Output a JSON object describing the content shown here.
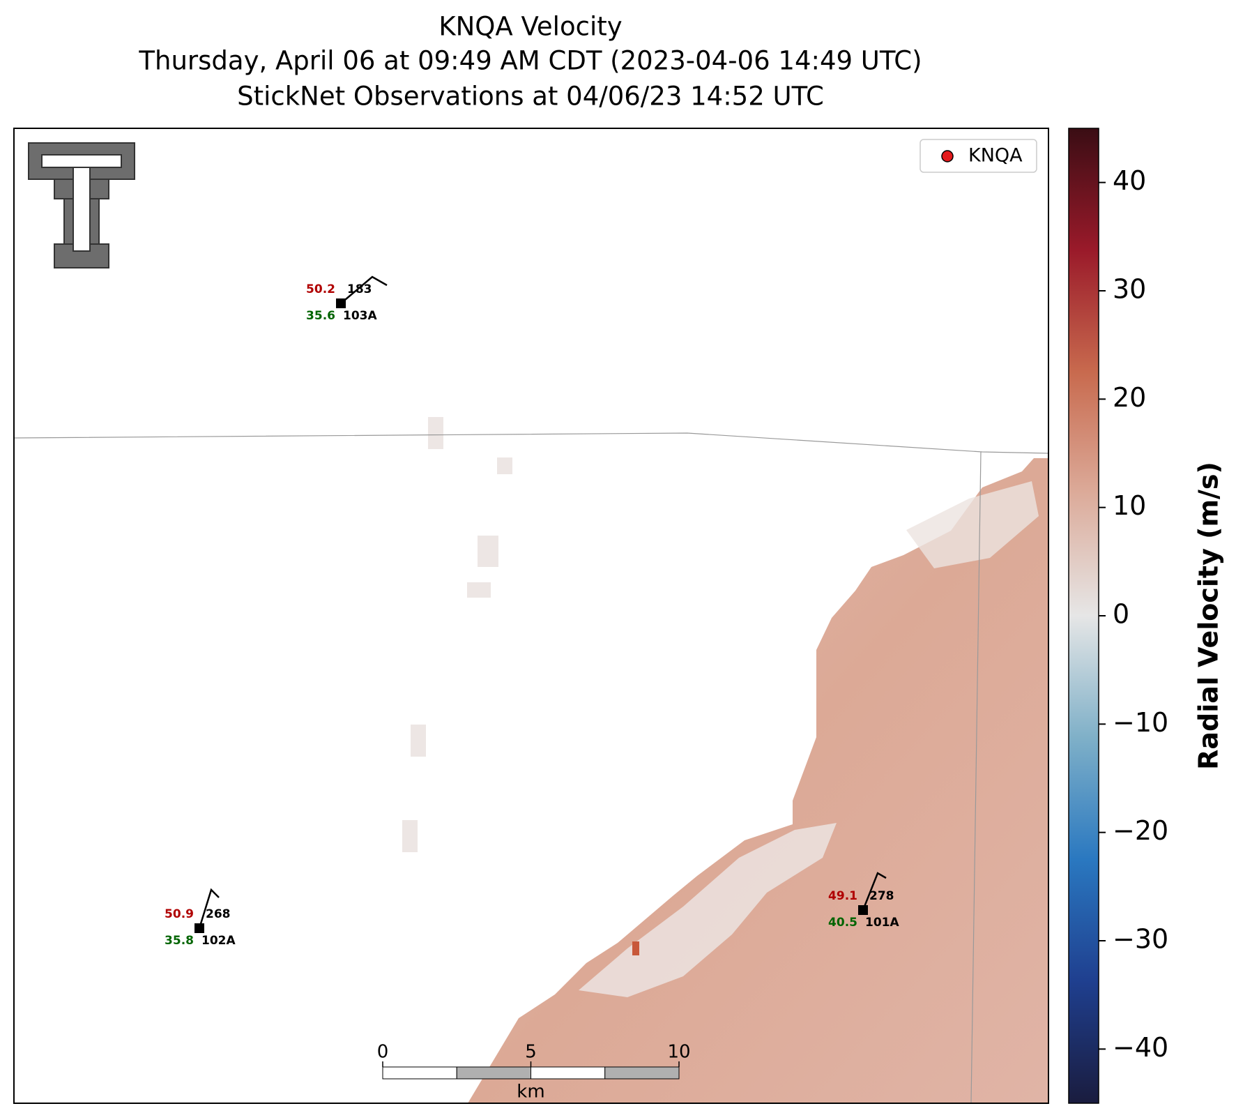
{
  "title": {
    "lines": [
      "KNQA Velocity",
      "Thursday, April 06 at 09:49 AM CDT (2023-04-06 14:49 UTC)",
      "StickNet Observations at 04/06/23 14:52 UTC"
    ]
  },
  "legend": {
    "label": "KNQA",
    "color": "#e31a1c"
  },
  "stations": [
    {
      "id": "103A",
      "temperature": 50.2,
      "dewpoint": 35.6,
      "wind_direction": 183
    },
    {
      "id": "102A",
      "temperature": 50.9,
      "dewpoint": 35.8,
      "wind_direction": 268
    },
    {
      "id": "101A",
      "temperature": 49.1,
      "dewpoint": 40.5,
      "wind_direction": 278
    }
  ],
  "colorbar": {
    "label": "Radial Velocity (m/s)",
    "lim": [
      -45,
      45
    ],
    "ticks": [
      {
        "value": -40,
        "label": "−40"
      },
      {
        "value": -30,
        "label": "−30"
      },
      {
        "value": -20,
        "label": "−20"
      },
      {
        "value": -10,
        "label": "−10"
      },
      0,
      10,
      20,
      30,
      40
    ],
    "colors": [
      "#1a1c3e",
      "#1f3f8f",
      "#2a78c0",
      "#7fb0c8",
      "#e6e6e6",
      "#dcab9a",
      "#c86a4e",
      "#9a1a2a",
      "#3a0d14"
    ]
  },
  "scale_bar": {
    "ticks": [
      0,
      5,
      10
    ],
    "unit": "km"
  }
}
